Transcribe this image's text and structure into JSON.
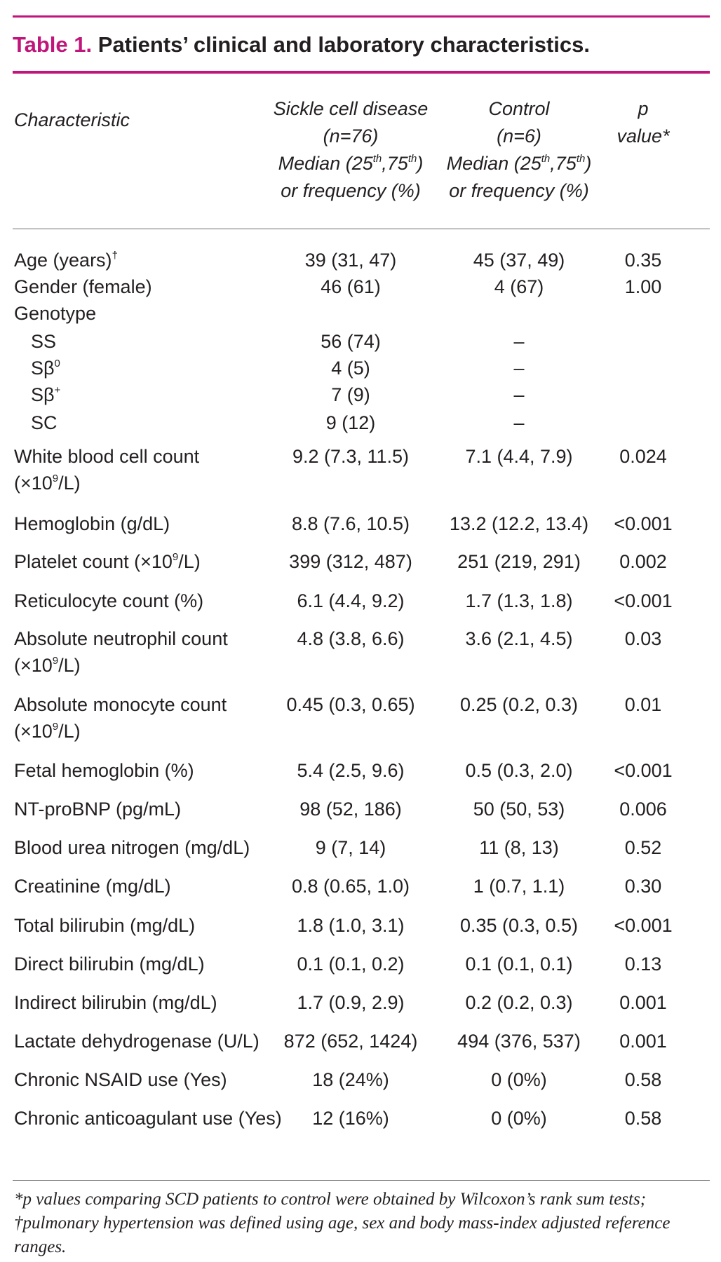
{
  "title": {
    "number": "Table 1.",
    "text": "Patients’ clinical and laboratory characteristics."
  },
  "headers": {
    "characteristic": "Characteristic",
    "scd": [
      "Sickle cell disease",
      "(n=76)",
      "Median (25th,75th)",
      "or frequency (%)"
    ],
    "control": [
      "Control",
      "(n=6)",
      "Median (25th,75th)",
      "or frequency (%)"
    ],
    "p": [
      "p",
      "value*"
    ]
  },
  "rows": [
    {
      "label": [
        "Age (years)†"
      ],
      "scd": "39 (31, 47)",
      "control": "45 (37, 49)",
      "p": "0.35"
    },
    {
      "label": [
        "Gender (female)"
      ],
      "scd": "46 (61)",
      "control": "4 (67)",
      "p": "1.00"
    },
    {
      "label": [
        "Genotype"
      ],
      "scd": "",
      "control": "",
      "p": ""
    },
    {
      "label": [
        "SS"
      ],
      "scd": "56 (74)",
      "control": "–",
      "p": ""
    },
    {
      "label": [
        "Sβ0"
      ],
      "scd": "4 (5)",
      "control": "–",
      "p": ""
    },
    {
      "label": [
        "Sβ+"
      ],
      "scd": "7 (9)",
      "control": "–",
      "p": ""
    },
    {
      "label": [
        "SC"
      ],
      "scd": "9 (12)",
      "control": "–",
      "p": ""
    },
    {
      "label": [
        "White blood cell count",
        "(×109/L)"
      ],
      "scd": "9.2 (7.3, 11.5)",
      "control": "7.1 (4.4, 7.9)",
      "p": "0.024"
    },
    {
      "label": [
        "Hemoglobin (g/dL)"
      ],
      "scd": "8.8 (7.6, 10.5)",
      "control": "13.2 (12.2, 13.4)",
      "p": "<0.001"
    },
    {
      "label": [
        "Platelet count (×109/L)"
      ],
      "scd": "399 (312, 487)",
      "control": "251 (219, 291)",
      "p": "0.002"
    },
    {
      "label": [
        "Reticulocyte count (%)"
      ],
      "scd": "6.1 (4.4, 9.2)",
      "control": "1.7 (1.3, 1.8)",
      "p": "<0.001"
    },
    {
      "label": [
        "Absolute neutrophil count",
        "(×109/L)"
      ],
      "scd": "4.8 (3.8, 6.6)",
      "control": "3.6 (2.1, 4.5)",
      "p": "0.03"
    },
    {
      "label": [
        "Absolute monocyte count",
        "(×109/L)"
      ],
      "scd": "0.45 (0.3, 0.65)",
      "control": "0.25 (0.2, 0.3)",
      "p": "0.01"
    },
    {
      "label": [
        "Fetal hemoglobin (%)"
      ],
      "scd": "5.4 (2.5, 9.6)",
      "control": "0.5 (0.3, 2.0)",
      "p": "<0.001"
    },
    {
      "label": [
        "NT-proBNP (pg/mL)"
      ],
      "scd": "98 (52, 186)",
      "control": "50 (50, 53)",
      "p": "0.006"
    },
    {
      "label": [
        "Blood urea nitrogen (mg/dL)"
      ],
      "scd": "9 (7, 14)",
      "control": "11 (8, 13)",
      "p": "0.52"
    },
    {
      "label": [
        "Creatinine (mg/dL)"
      ],
      "scd": "0.8 (0.65, 1.0)",
      "control": "1 (0.7, 1.1)",
      "p": "0.30"
    },
    {
      "label": [
        "Total bilirubin (mg/dL)"
      ],
      "scd": "1.8 (1.0, 3.1)",
      "control": "0.35 (0.3, 0.5)",
      "p": "<0.001"
    },
    {
      "label": [
        "Direct bilirubin (mg/dL)"
      ],
      "scd": "0.1 (0.1, 0.2)",
      "control": "0.1 (0.1, 0.1)",
      "p": "0.13"
    },
    {
      "label": [
        "Indirect bilirubin (mg/dL)"
      ],
      "scd": "1.7 (0.9, 2.9)",
      "control": "0.2 (0.2, 0.3)",
      "p": "0.001"
    },
    {
      "label": [
        "Lactate dehydrogenase (U/L)"
      ],
      "scd": "872 (652, 1424)",
      "control": "494 (376, 537)",
      "p": "0.001"
    },
    {
      "label": [
        "Chronic NSAID use (Yes)"
      ],
      "scd": "18 (24%)",
      "control": "0 (0%)",
      "p": "0.58"
    },
    {
      "label": [
        "Chronic anticoagulant use (Yes)"
      ],
      "scd": "12 (16%)",
      "control": "0 (0%)",
      "p": "0.58"
    }
  ],
  "footnote": "*p values comparing SCD patients to control were obtained by Wilcoxon’s rank sum tests; †pulmonary hypertension was defined using age, sex and body mass-index adjusted reference ranges.",
  "colors": {
    "accent": "#c0157a",
    "text": "#231f20",
    "rule": "#6d6e71"
  }
}
